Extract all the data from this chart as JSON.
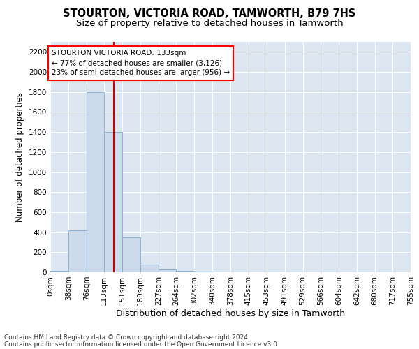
{
  "title1": "STOURTON, VICTORIA ROAD, TAMWORTH, B79 7HS",
  "title2": "Size of property relative to detached houses in Tamworth",
  "xlabel": "Distribution of detached houses by size in Tamworth",
  "ylabel": "Number of detached properties",
  "footer1": "Contains HM Land Registry data © Crown copyright and database right 2024.",
  "footer2": "Contains public sector information licensed under the Open Government Licence v3.0.",
  "annotation_line1": "STOURTON VICTORIA ROAD: 133sqm",
  "annotation_line2": "← 77% of detached houses are smaller (3,126)",
  "annotation_line3": "23% of semi-detached houses are larger (956) →",
  "property_size_sqm": 133,
  "bar_color": "#ccdaeb",
  "bar_edge_color": "#7aaacf",
  "vline_color": "#cc0000",
  "background_color": "#dce6f0",
  "bin_edges": [
    0,
    38,
    76,
    113,
    151,
    189,
    227,
    264,
    302,
    340,
    378,
    415,
    453,
    491,
    529,
    566,
    604,
    642,
    680,
    717,
    755
  ],
  "bin_values": [
    15,
    420,
    1800,
    1400,
    350,
    75,
    30,
    15,
    5,
    2,
    1,
    0,
    0,
    0,
    0,
    0,
    0,
    0,
    0,
    0
  ],
  "ylim": [
    0,
    2300
  ],
  "yticks": [
    0,
    200,
    400,
    600,
    800,
    1000,
    1200,
    1400,
    1600,
    1800,
    2000,
    2200
  ],
  "title1_fontsize": 10.5,
  "title2_fontsize": 9.5,
  "ylabel_fontsize": 8.5,
  "xlabel_fontsize": 9,
  "tick_fontsize": 7.5,
  "annotation_fontsize": 7.5,
  "footer_fontsize": 6.5
}
